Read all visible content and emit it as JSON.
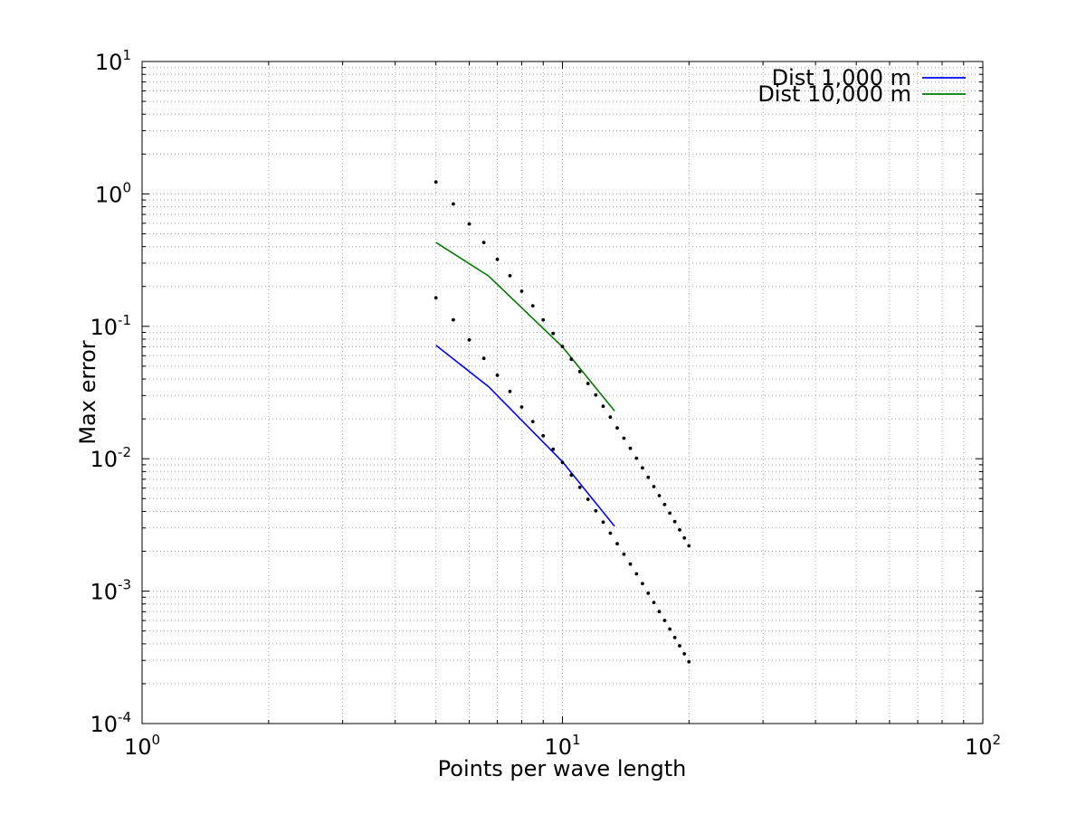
{
  "chart_data": {
    "type": "line",
    "x_scale": "log",
    "y_scale": "log",
    "xlim": [
      1,
      100
    ],
    "ylim": [
      0.0001,
      10
    ],
    "grid": true,
    "legend_position": "top-right",
    "xlabel": "Points per wave length",
    "ylabel": "Max error",
    "x_ticks": [
      {
        "base": "10",
        "exp": "0",
        "value": 1
      },
      {
        "base": "10",
        "exp": "1",
        "value": 10
      },
      {
        "base": "10",
        "exp": "2",
        "value": 100
      }
    ],
    "y_ticks": [
      {
        "base": "10",
        "exp": "1",
        "value": 10
      },
      {
        "base": "10",
        "exp": "0",
        "value": 1
      },
      {
        "base": "10",
        "exp": "-1",
        "value": 0.1
      },
      {
        "base": "10",
        "exp": "-2",
        "value": 0.01
      },
      {
        "base": "10",
        "exp": "-3",
        "value": 0.001
      },
      {
        "base": "10",
        "exp": "-4",
        "value": 0.0001
      }
    ],
    "series": [
      {
        "name": "Dist 1,000 m",
        "color": "#0000ff",
        "style": "line",
        "x": [
          5,
          6.67,
          10,
          13.3
        ],
        "y": [
          0.072,
          0.035,
          0.0095,
          0.0031
        ]
      },
      {
        "name": "Dist 10,000 m",
        "color": "#007700",
        "style": "line",
        "x": [
          5,
          6.67,
          10,
          13.3
        ],
        "y": [
          0.43,
          0.24,
          0.07,
          0.023
        ]
      },
      {
        "name": "",
        "color": "#000000",
        "style": "dots",
        "x": [
          5,
          5.5,
          6,
          6.5,
          7,
          7.5,
          8,
          8.5,
          9,
          9.5,
          10,
          10.5,
          11,
          11.5,
          12,
          12.5,
          13,
          13.5,
          14,
          14.5,
          15,
          15.5,
          16,
          16.5,
          17,
          17.5,
          18,
          18.5,
          19,
          19.5,
          20
        ],
        "y": [
          1.23,
          0.84,
          0.593,
          0.43,
          0.32,
          0.241,
          0.184,
          0.143,
          0.112,
          0.0883,
          0.0703,
          0.0564,
          0.0455,
          0.037,
          0.0303,
          0.0249,
          0.0206,
          0.0171,
          0.0143,
          0.012,
          0.0101,
          0.00853,
          0.00723,
          0.00616,
          0.00526,
          0.00451,
          0.00388,
          0.00335,
          0.0029,
          0.00252,
          0.0022
        ]
      },
      {
        "name": "",
        "color": "#000000",
        "style": "dots",
        "x": [
          5,
          5.5,
          6,
          6.5,
          7,
          7.5,
          8,
          8.5,
          9,
          9.5,
          10,
          10.5,
          11,
          11.5,
          12,
          12.5,
          13,
          13.5,
          14,
          14.5,
          15,
          15.5,
          16,
          16.5,
          17,
          17.5,
          18,
          18.5,
          19,
          19.5,
          20
        ],
        "y": [
          0.164,
          0.112,
          0.079,
          0.0573,
          0.0427,
          0.0322,
          0.0246,
          0.0191,
          0.0149,
          0.0118,
          0.00938,
          0.00752,
          0.00607,
          0.00494,
          0.00404,
          0.00332,
          0.00274,
          0.00228,
          0.0019,
          0.0016,
          0.00135,
          0.00114,
          0.000965,
          0.000821,
          0.000701,
          0.000601,
          0.000517,
          0.000446,
          0.000387,
          0.000336,
          0.000293
        ]
      }
    ]
  }
}
